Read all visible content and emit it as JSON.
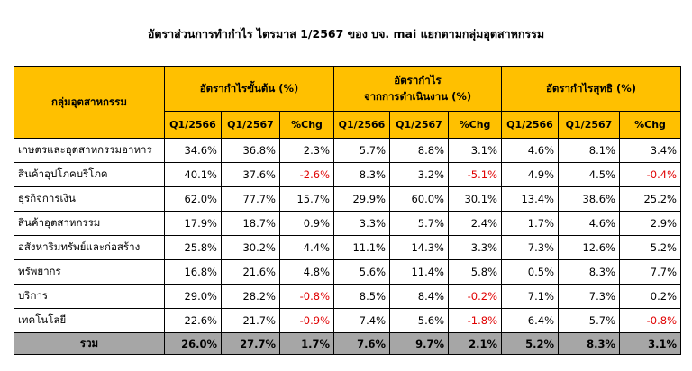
{
  "title": "อัตราส่วนการทำกำไร ไตรมาส 1/2567  ของ บจ. mai แยกตามกลุ่มอุตสาหกรรม",
  "table": {
    "header": {
      "group_label": "กลุ่มอุตสาหกรรม",
      "groups": [
        [
          "อัตรากำไรขั้นต้น (%)"
        ],
        [
          "อัตรากำไร",
          "จากการดำเนินงาน (%)"
        ],
        [
          "อัตรากำไรสุทธิ (%)"
        ]
      ],
      "subheaders": [
        "Q1/2566",
        "Q1/2567",
        "%Chg",
        "Q1/2566",
        "Q1/2567",
        "%Chg",
        "Q1/2566",
        "Q1/2567",
        "%Chg"
      ]
    },
    "rows": [
      [
        "เกษตรและอุตสาหกรรมอาหาร",
        "34.6%",
        "36.8%",
        "2.3%",
        "5.7%",
        "8.8%",
        "3.1%",
        "4.6%",
        "8.1%",
        "3.4%"
      ],
      [
        "สินค้าอุปโภคบริโภค",
        "40.1%",
        "37.6%",
        "-2.6%",
        "8.3%",
        "3.2%",
        "-5.1%",
        "4.9%",
        "4.5%",
        "-0.4%"
      ],
      [
        "ธุรกิจการเงิน",
        "62.0%",
        "77.7%",
        "15.7%",
        "29.9%",
        "60.0%",
        "30.1%",
        "13.4%",
        "38.6%",
        "25.2%"
      ],
      [
        "สินค้าอุตสาหกรรม",
        "17.9%",
        "18.7%",
        "0.9%",
        "3.3%",
        "5.7%",
        "2.4%",
        "1.7%",
        "4.6%",
        "2.9%"
      ],
      [
        "อสังหาริมทรัพย์และก่อสร้าง",
        "25.8%",
        "30.2%",
        "4.4%",
        "11.1%",
        "14.3%",
        "3.3%",
        "7.3%",
        "12.6%",
        "5.2%"
      ],
      [
        "ทรัพยากร",
        "16.8%",
        "21.6%",
        "4.8%",
        "5.6%",
        "11.4%",
        "5.8%",
        "0.5%",
        "8.3%",
        "7.7%"
      ],
      [
        "บริการ",
        "29.0%",
        "28.2%",
        "-0.8%",
        "8.5%",
        "8.4%",
        "-0.2%",
        "7.1%",
        "7.3%",
        "0.2%"
      ],
      [
        "เทคโนโลยี",
        "22.6%",
        "21.7%",
        "-0.9%",
        "7.4%",
        "5.6%",
        "-1.8%",
        "6.4%",
        "5.7%",
        "-0.8%"
      ]
    ],
    "total": [
      "รวม",
      "26.0%",
      "27.7%",
      "1.7%",
      "7.6%",
      "9.7%",
      "2.1%",
      "5.2%",
      "8.3%",
      "3.1%"
    ]
  }
}
